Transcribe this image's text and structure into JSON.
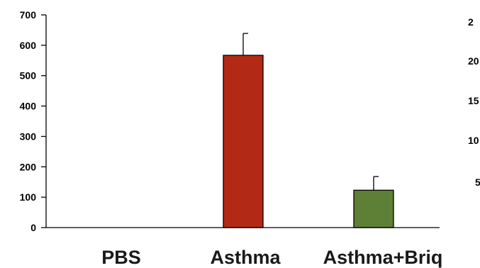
{
  "chart_data": {
    "type": "bar",
    "categories": [
      "PBS",
      "Asthma",
      "Asthma+Briq"
    ],
    "values": [
      0,
      567,
      123
    ],
    "error": [
      0,
      72,
      45
    ],
    "colors": [
      "#b22a16",
      "#b22a16",
      "#5e7f36"
    ],
    "ylim": [
      0,
      700
    ],
    "yticks": [
      0,
      100,
      200,
      300,
      400,
      500,
      600,
      700
    ],
    "ytick_labels": [
      "0",
      "100",
      "200",
      "300",
      "400",
      "500",
      "600",
      "700"
    ],
    "xlabel": "",
    "ylabel": "",
    "title": "",
    "grid": false
  },
  "clipped_panel": {
    "tick_fragments": [
      "2",
      "20",
      "15",
      "10",
      "5"
    ]
  }
}
